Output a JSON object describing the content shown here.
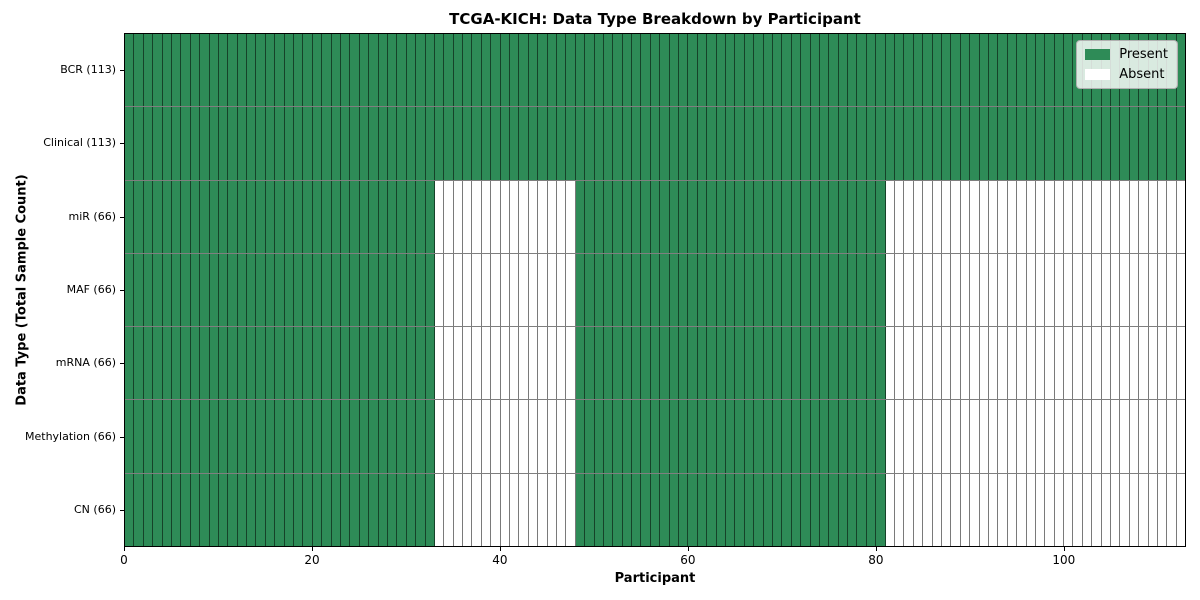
{
  "figure": {
    "title": "TCGA-KICH: Data Type Breakdown by Participant",
    "xlabel": "Participant",
    "ylabel": "Data Type (Total Sample Count)"
  },
  "legend": {
    "items": [
      {
        "label": "Present",
        "color": "#2e8b57"
      },
      {
        "label": "Absent",
        "color": "#ffffff"
      }
    ]
  },
  "chart_data": {
    "type": "heatmap",
    "title": "TCGA-KICH: Data Type Breakdown by Participant",
    "xlabel": "Participant",
    "ylabel": "Data Type (Total Sample Count)",
    "n_participants": 113,
    "xlim": [
      0,
      113
    ],
    "x_ticks": [
      0,
      20,
      40,
      60,
      80,
      100
    ],
    "grid": false,
    "legend_position": "upper right",
    "colors": {
      "present": "#2e8b57",
      "absent": "#ffffff",
      "cell_edge": "rgba(0,0,0,0.52)"
    },
    "rows": [
      {
        "label": "BCR (113)",
        "data_type": "BCR",
        "total": 113,
        "present_ranges": [
          [
            0,
            113
          ]
        ]
      },
      {
        "label": "Clinical (113)",
        "data_type": "Clinical",
        "total": 113,
        "present_ranges": [
          [
            0,
            113
          ]
        ]
      },
      {
        "label": "miR (66)",
        "data_type": "miR",
        "total": 66,
        "present_ranges": [
          [
            0,
            33
          ],
          [
            48,
            81
          ]
        ]
      },
      {
        "label": "MAF (66)",
        "data_type": "MAF",
        "total": 66,
        "present_ranges": [
          [
            0,
            33
          ],
          [
            48,
            81
          ]
        ]
      },
      {
        "label": "mRNA (66)",
        "data_type": "mRNA",
        "total": 66,
        "present_ranges": [
          [
            0,
            33
          ],
          [
            48,
            81
          ]
        ]
      },
      {
        "label": "Methylation (66)",
        "data_type": "Methylation",
        "total": 66,
        "present_ranges": [
          [
            0,
            33
          ],
          [
            48,
            81
          ]
        ]
      },
      {
        "label": "CN (66)",
        "data_type": "CN",
        "total": 66,
        "present_ranges": [
          [
            0,
            33
          ],
          [
            48,
            81
          ]
        ]
      }
    ]
  }
}
